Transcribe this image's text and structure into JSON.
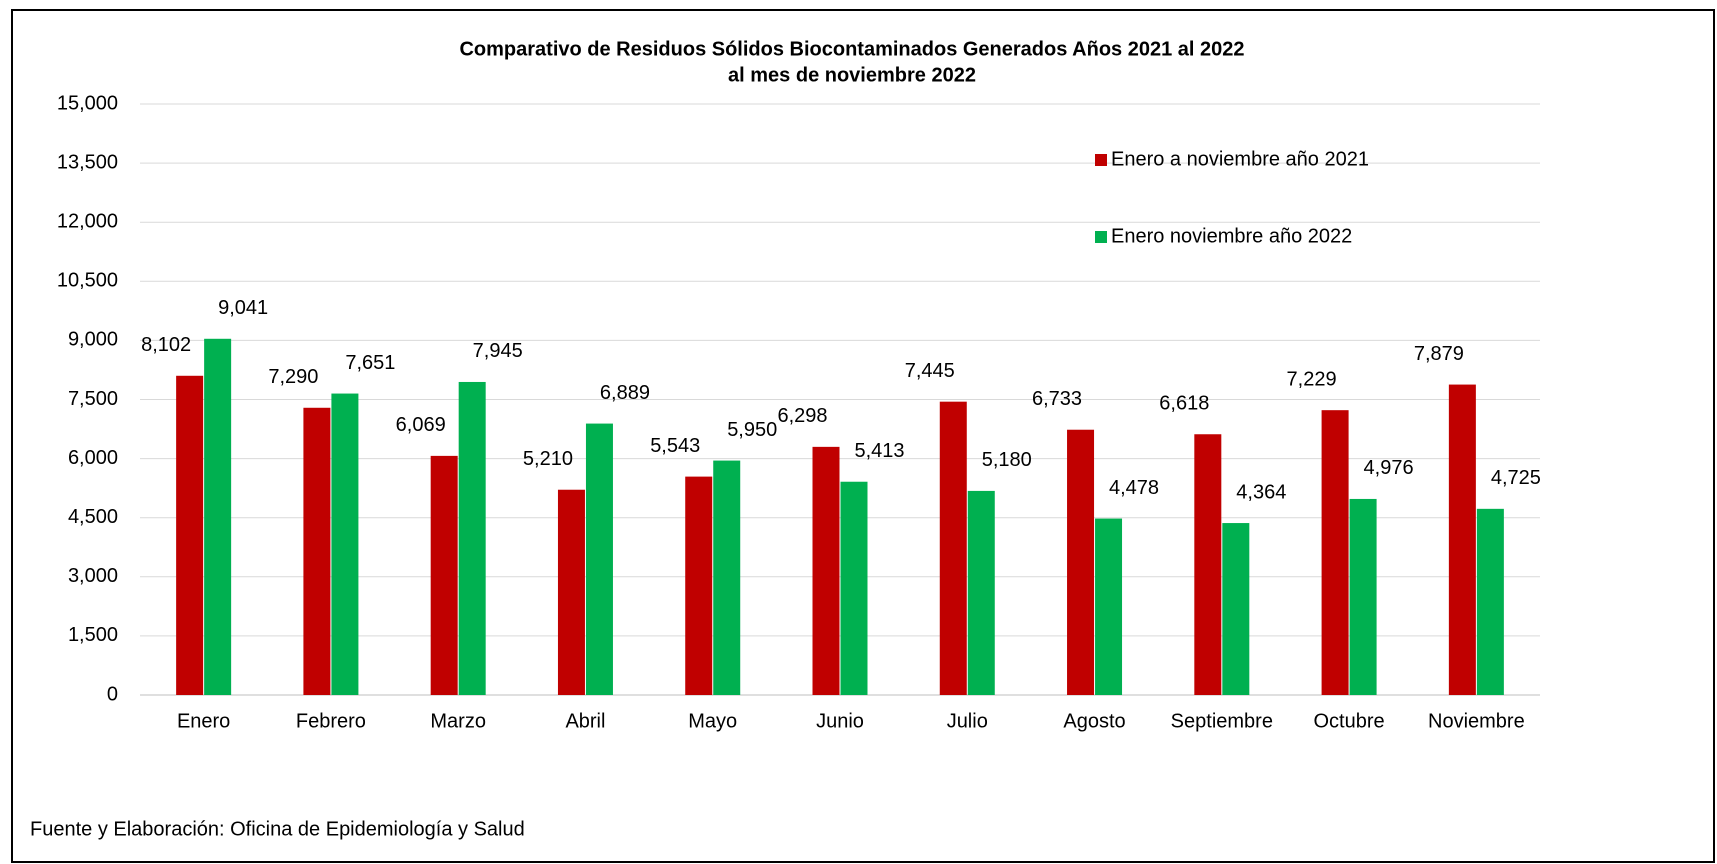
{
  "chart_data": {
    "type": "bar",
    "title": "Comparativo de Residuos Sólidos Biocontaminados Generados Años 2021 al 2022",
    "subtitle": "al mes de noviembre 2022",
    "categories": [
      "Enero",
      "Febrero",
      "Marzo",
      "Abril",
      "Mayo",
      "Junio",
      "Julio",
      "Agosto",
      "Septiembre",
      "Octubre",
      "Noviembre"
    ],
    "series": [
      {
        "name": "Enero a noviembre año 2021",
        "color": "#c00000",
        "values": [
          8102,
          7290,
          6069,
          5210,
          5543,
          6298,
          7445,
          6733,
          6618,
          7229,
          7879
        ],
        "value_labels": [
          "8,102",
          "7,290",
          "6,069",
          "5,210",
          "5,543",
          "6,298",
          "7,445",
          "6,733",
          "6,618",
          "7,229",
          "7,879"
        ]
      },
      {
        "name": "Enero noviembre año 2022",
        "color": "#00b050",
        "values": [
          9041,
          7651,
          7945,
          6889,
          5950,
          5413,
          5180,
          4478,
          4364,
          4976,
          4725
        ],
        "value_labels": [
          "9,041",
          "7,651",
          "7,945",
          "6,889",
          "5,950",
          "5,413",
          "5,180",
          "4,478",
          "4,364",
          "4,976",
          "4,725"
        ]
      }
    ],
    "ylim": [
      0,
      15000
    ],
    "yticks": [
      0,
      {
        "value": 1500,
        "label": "1,500"
      },
      {
        "value": 3000,
        "label": "3,000"
      },
      {
        "value": 4500,
        "label": "4,500"
      },
      {
        "value": 6000,
        "label": "6,000"
      },
      {
        "value": 7500,
        "label": "7,500"
      },
      {
        "value": 9000,
        "label": "9,000"
      },
      {
        "value": 10500,
        "label": "10,500"
      },
      {
        "value": 12000,
        "label": "12,000"
      },
      {
        "value": 13500,
        "label": "13,500"
      },
      {
        "value": 15000,
        "label": "15,000"
      }
    ],
    "grid": true,
    "legend": "upper right",
    "source": "Fuente y Elaboración: Oficina de Epidemiología y Salud"
  }
}
